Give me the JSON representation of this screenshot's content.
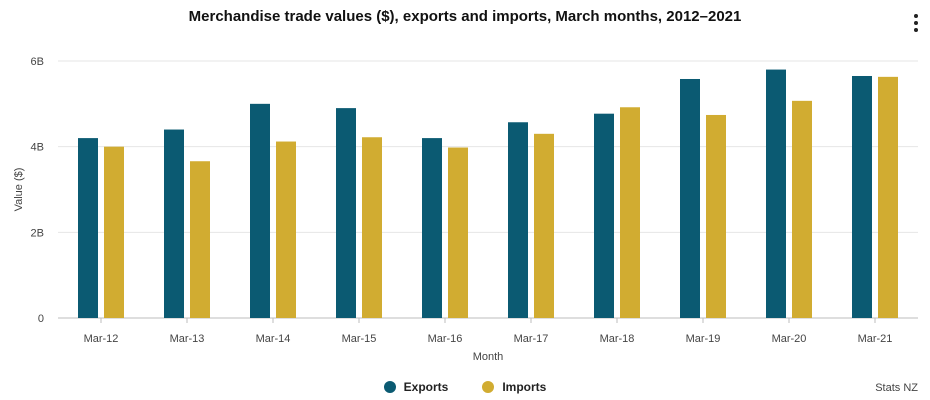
{
  "chart_data": {
    "type": "bar",
    "title": "Merchandise trade values ($), exports and imports, March months, 2012–2021",
    "xlabel": "Month",
    "ylabel": "Value ($)",
    "ylim": [
      0,
      6
    ],
    "yticks": [
      0,
      2,
      4,
      6
    ],
    "ytick_labels": [
      "0",
      "2B",
      "4B",
      "6B"
    ],
    "categories": [
      "Mar-12",
      "Mar-13",
      "Mar-14",
      "Mar-15",
      "Mar-16",
      "Mar-17",
      "Mar-18",
      "Mar-19",
      "Mar-20",
      "Mar-21"
    ],
    "series": [
      {
        "name": "Exports",
        "color": "#0b5a72",
        "values": [
          4.2,
          4.4,
          5.0,
          4.9,
          4.2,
          4.57,
          4.77,
          5.58,
          5.8,
          5.65
        ]
      },
      {
        "name": "Imports",
        "color": "#d1ac31",
        "values": [
          4.0,
          3.66,
          4.12,
          4.22,
          3.98,
          4.3,
          4.92,
          4.74,
          5.07,
          5.63
        ]
      }
    ],
    "legend_position": "bottom-center"
  },
  "source_label": "Stats NZ",
  "menu_icon": "vertical-ellipsis-icon"
}
